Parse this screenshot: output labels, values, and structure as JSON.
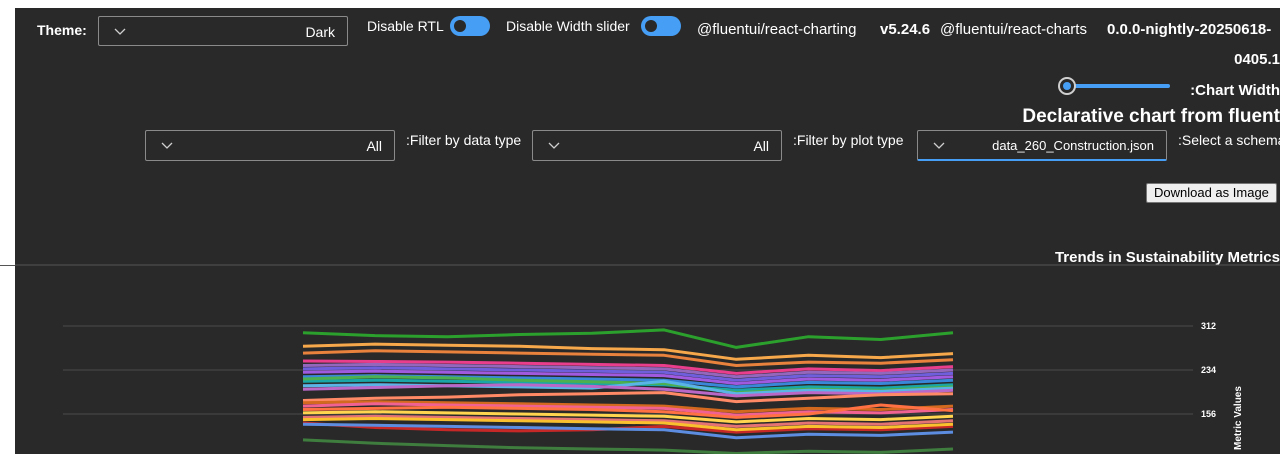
{
  "toolbar": {
    "theme_label": "Theme:",
    "theme_value": "Dark",
    "disable_rtl_label": "Disable RTL",
    "disable_width_slider_label": "Disable Width slider",
    "pkg1_name": "@fluentui/react-charting",
    "pkg1_version": "v5.24.6",
    "pkg2_name": "@fluentui/react-charts",
    "pkg2_version_line1": "0.0.0-nightly-20250618-",
    "pkg2_version_line2": "0405.1",
    "chart_width_label": ":Chart Width",
    "slider_level": 0
  },
  "page": {
    "heading": "Declarative chart from fluent"
  },
  "filters": {
    "data_type_label": ":Filter by data type",
    "data_type_value": "All",
    "plot_type_label": ":Filter by plot type",
    "plot_type_value": "All",
    "schema_label": ":Select a schema",
    "schema_value": "data_260_Construction.json"
  },
  "actions": {
    "download_label": "Download as Image"
  },
  "colors": {
    "accent": "#479ef5",
    "background": "#292929",
    "gridline": "#4a4a4a"
  },
  "chart_data": {
    "type": "line",
    "title": "Trends in Sustainability Metrics",
    "ylabel": "Metric Values",
    "y_ticks": [
      312,
      234,
      156
    ],
    "ylim": [
      90,
      320
    ],
    "series": [
      {
        "color": "#2ca02c",
        "values": [
          300,
          295,
          293,
          297,
          299,
          305,
          274,
          293,
          288,
          300
        ]
      },
      {
        "color": "#f7a84a",
        "values": [
          276,
          280,
          278,
          276,
          272,
          270,
          253,
          260,
          256,
          263
        ]
      },
      {
        "color": "#e8823c",
        "values": [
          264,
          268,
          266,
          264,
          262,
          260,
          242,
          248,
          246,
          252
        ]
      },
      {
        "color": "#e83e8c",
        "values": [
          250,
          249,
          248,
          246,
          244,
          242,
          228,
          236,
          233,
          240
        ]
      },
      {
        "color": "#9467bd",
        "values": [
          242,
          244,
          242,
          240,
          238,
          236,
          222,
          230,
          228,
          234
        ]
      },
      {
        "color": "#6f5fdc",
        "values": [
          236,
          238,
          236,
          234,
          232,
          230,
          216,
          224,
          222,
          228
        ]
      },
      {
        "color": "#a05ae0",
        "values": [
          230,
          232,
          230,
          228,
          226,
          224,
          210,
          218,
          216,
          222
        ]
      },
      {
        "color": "#3a86d8",
        "values": [
          222,
          224,
          222,
          220,
          218,
          216,
          204,
          212,
          210,
          216
        ]
      },
      {
        "color": "#1aa6a6",
        "values": [
          214,
          216,
          214,
          212,
          210,
          208,
          198,
          204,
          202,
          208
        ]
      },
      {
        "color": "#4caf50",
        "values": [
          218,
          222,
          220,
          216,
          213,
          210,
          194,
          200,
          198,
          204
        ]
      },
      {
        "color": "#5ab4e6",
        "values": [
          206,
          208,
          206,
          204,
          202,
          214,
          192,
          198,
          196,
          202
        ]
      },
      {
        "color": "#ba68c8",
        "values": [
          200,
          203,
          206,
          208,
          205,
          200,
          188,
          194,
          192,
          198
        ]
      },
      {
        "color": "#ff8a65",
        "values": [
          180,
          184,
          186,
          190,
          192,
          194,
          178,
          184,
          190,
          192
        ]
      },
      {
        "color": "#d2691e",
        "values": [
          176,
          178,
          176,
          174,
          172,
          170,
          160,
          166,
          164,
          170
        ]
      },
      {
        "color": "#f06292",
        "values": [
          170,
          174,
          172,
          170,
          168,
          166,
          154,
          160,
          158,
          164
        ]
      },
      {
        "color": "#ff7043",
        "values": [
          164,
          166,
          168,
          166,
          164,
          160,
          150,
          156,
          172,
          162
        ]
      },
      {
        "color": "#ffd54f",
        "values": [
          158,
          160,
          158,
          156,
          154,
          152,
          142,
          148,
          146,
          152
        ]
      },
      {
        "color": "#c62828",
        "values": [
          140,
          132,
          128,
          126,
          128,
          134,
          124,
          130,
          128,
          134
        ]
      },
      {
        "color": "#e57373",
        "values": [
          150,
          152,
          150,
          148,
          146,
          144,
          134,
          140,
          138,
          144
        ]
      },
      {
        "color": "#fbc02d",
        "values": [
          146,
          148,
          146,
          144,
          142,
          140,
          128,
          134,
          132,
          138
        ]
      },
      {
        "color": "#5c8de0",
        "values": [
          138,
          136,
          134,
          132,
          130,
          128,
          114,
          120,
          118,
          124
        ]
      },
      {
        "color": "#3e7d3e",
        "values": [
          110,
          104,
          100,
          96,
          94,
          92,
          86,
          90,
          88,
          94
        ]
      }
    ]
  }
}
